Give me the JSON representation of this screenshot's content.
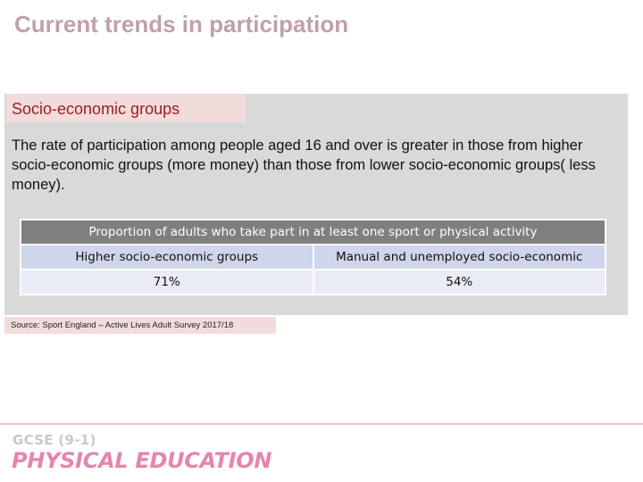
{
  "slide": {
    "title": "Current trends in participation",
    "section_label": "Socio-economic groups",
    "body": "The rate of participation among people aged 16 and over is greater in those from higher socio-economic groups (more money) than those from lower socio-economic groups( less money)."
  },
  "table": {
    "caption": "Proportion of adults who take part in at least one sport or physical activity",
    "columns": [
      "Higher socio-economic groups",
      "Manual and unemployed socio-economic"
    ],
    "values": [
      "71%",
      "54%"
    ]
  },
  "source": "Source: Sport England – Active Lives Adult Survey 2017/18",
  "footer": {
    "logo_line1": "GCSE (9-1)",
    "logo_line2": "PHYSICAL EDUCATION"
  },
  "colors": {
    "title": "#c0a0ac",
    "section_text": "#9b1e23",
    "section_bg": "#f2dcdb",
    "panel_bg": "#d9d9d9",
    "table_header_bg": "#7f7f7f",
    "logo_pink": "#e585b0"
  }
}
